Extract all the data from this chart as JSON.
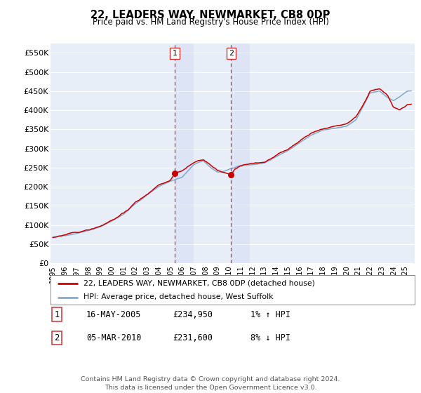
{
  "title": "22, LEADERS WAY, NEWMARKET, CB8 0DP",
  "subtitle": "Price paid vs. HM Land Registry's House Price Index (HPI)",
  "ylim": [
    0,
    575000
  ],
  "yticks": [
    0,
    50000,
    100000,
    150000,
    200000,
    250000,
    300000,
    350000,
    400000,
    450000,
    500000,
    550000
  ],
  "ytick_labels": [
    "£0",
    "£50K",
    "£100K",
    "£150K",
    "£200K",
    "£250K",
    "£300K",
    "£350K",
    "£400K",
    "£450K",
    "£500K",
    "£550K"
  ],
  "background_color": "#ffffff",
  "plot_bg_color": "#e8eef8",
  "grid_color": "#ffffff",
  "hpi_color": "#7faacc",
  "price_color": "#cc0000",
  "vline_color": "#cc3333",
  "sale1_x": 2005.37,
  "sale1_y": 234950,
  "sale2_x": 2010.17,
  "sale2_y": 231600,
  "legend_line1": "22, LEADERS WAY, NEWMARKET, CB8 0DP (detached house)",
  "legend_line2": "HPI: Average price, detached house, West Suffolk",
  "annotation1_label": "1",
  "annotation1_date": "16-MAY-2005",
  "annotation1_price": "£234,950",
  "annotation1_hpi": "1% ↑ HPI",
  "annotation2_label": "2",
  "annotation2_date": "05-MAR-2010",
  "annotation2_price": "£231,600",
  "annotation2_hpi": "8% ↓ HPI",
  "footer": "Contains HM Land Registry data © Crown copyright and database right 2024.\nThis data is licensed under the Open Government Licence v3.0.",
  "xmin": 1994.8,
  "xmax": 2025.8
}
